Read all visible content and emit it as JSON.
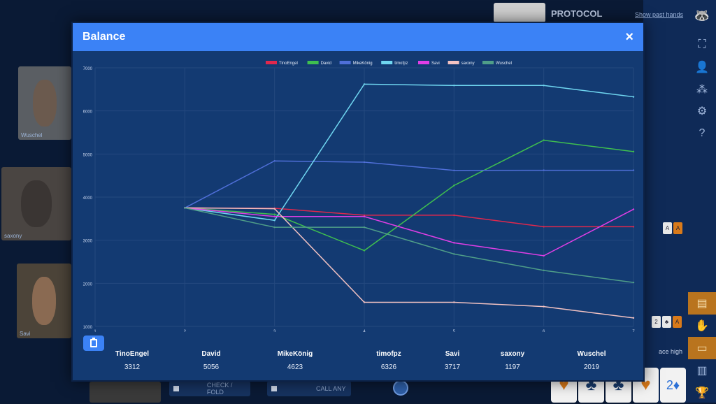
{
  "modal": {
    "title": "Balance",
    "close": "×"
  },
  "background": {
    "protocol_title": "PROTOCOL",
    "show_past_hands": "Show past hands",
    "players_video": [
      {
        "name": "Wuschel"
      },
      {
        "name": "saxony"
      },
      {
        "name": "Savi"
      }
    ],
    "action_check_fold": "CHECK / FOLD",
    "action_call_any": "CALL ANY",
    "hand_text": "ace high",
    "big_cards": [
      "♥",
      "♣",
      "♣",
      "♥",
      "2♦"
    ],
    "big_card_colors": [
      "#d97a1a",
      "#163a6b",
      "#163a6b",
      "#d97a1a",
      "#2a6fd6"
    ]
  },
  "chart_data": {
    "type": "line",
    "x": [
      1,
      2,
      3,
      4,
      5,
      6,
      7
    ],
    "ylim": [
      1000,
      7000
    ],
    "yticks": [
      "7000",
      "6000",
      "5000",
      "4000",
      "3000",
      "2000",
      "1000"
    ],
    "xticks": [
      "1",
      "2",
      "3",
      "4",
      "5",
      "6",
      "7"
    ],
    "grid": true,
    "legend_position": "top-center",
    "series": [
      {
        "name": "TinoEngel",
        "color": "#e0284d",
        "values": [
          null,
          3750,
          3740,
          3580,
          3580,
          3312,
          3312
        ]
      },
      {
        "name": "David",
        "color": "#3fbf4f",
        "values": [
          null,
          3750,
          3600,
          2760,
          4270,
          5320,
          5056
        ]
      },
      {
        "name": "MikeKönig",
        "color": "#4f6fd8",
        "values": [
          null,
          3750,
          4840,
          4810,
          4620,
          4623,
          4623
        ]
      },
      {
        "name": "timofpz",
        "color": "#6fd6f0",
        "values": [
          null,
          3750,
          3460,
          6620,
          6590,
          6590,
          6326
        ]
      },
      {
        "name": "Savi",
        "color": "#e03ee6",
        "values": [
          null,
          3750,
          3550,
          3550,
          2940,
          2640,
          3717
        ]
      },
      {
        "name": "saxony",
        "color": "#f2c2c2",
        "values": [
          null,
          3750,
          3730,
          1560,
          1560,
          1460,
          1197
        ]
      },
      {
        "name": "Wuschel",
        "color": "#4f9e88",
        "values": [
          null,
          3750,
          3300,
          3300,
          2680,
          2300,
          2019
        ]
      }
    ]
  },
  "totals": [
    {
      "name": "TinoEngel",
      "value": "3312"
    },
    {
      "name": "David",
      "value": "5056"
    },
    {
      "name": "MikeKönig",
      "value": "4623"
    },
    {
      "name": "timofpz",
      "value": "6326"
    },
    {
      "name": "Savi",
      "value": "3717"
    },
    {
      "name": "saxony",
      "value": "1197"
    },
    {
      "name": "Wuschel",
      "value": "2019"
    }
  ]
}
